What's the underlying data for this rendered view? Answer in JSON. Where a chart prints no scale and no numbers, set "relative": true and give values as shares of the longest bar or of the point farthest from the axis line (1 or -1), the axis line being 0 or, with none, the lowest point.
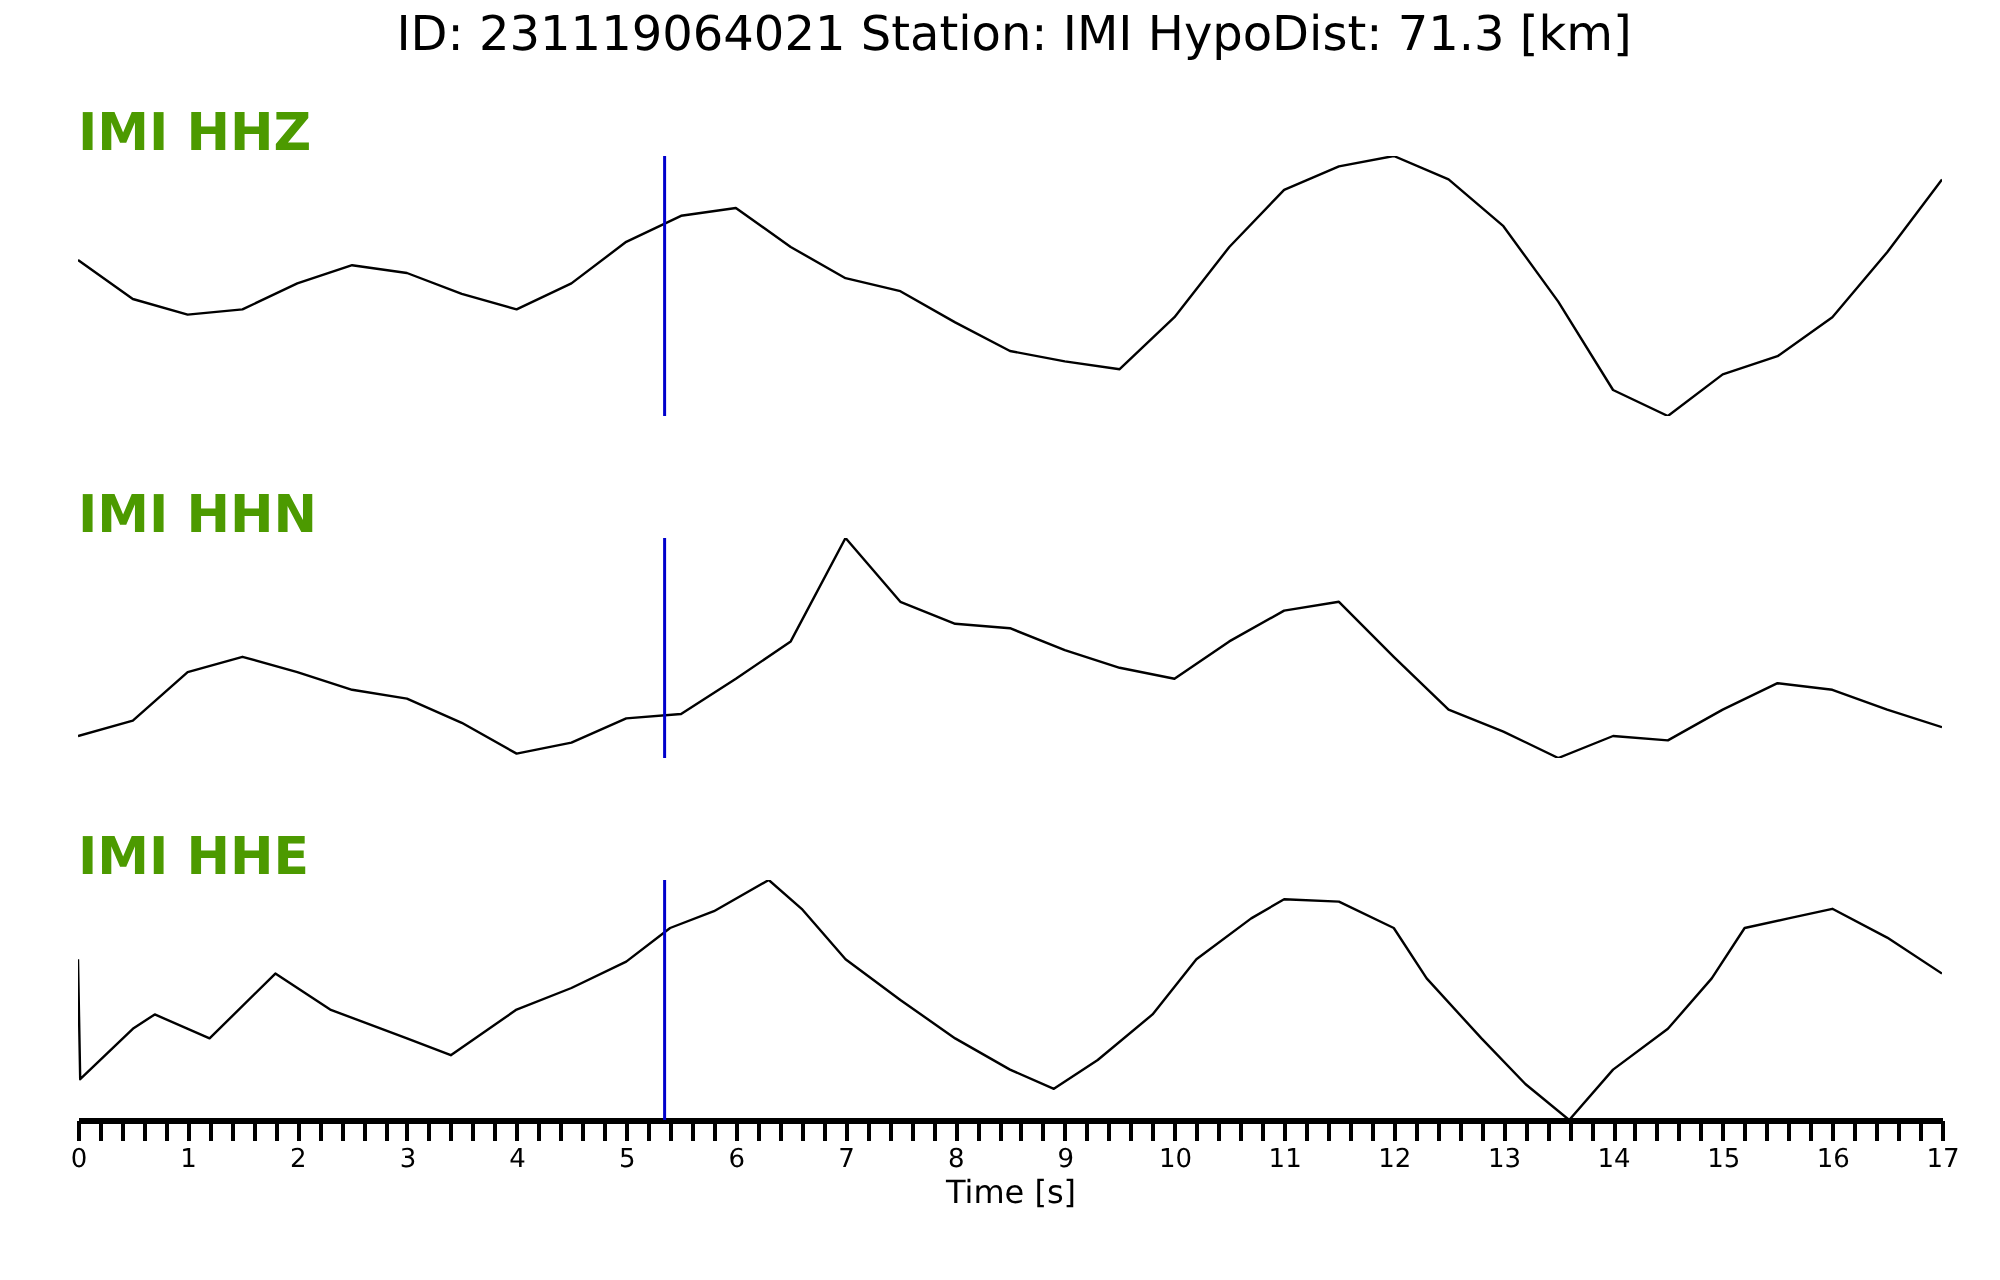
{
  "chart_data": [
    {
      "type": "line",
      "title": "ID: 231119064021   Station: IMI   HypoDist:    71.3 [km]",
      "relative": true,
      "tick_labels": false,
      "legend": false,
      "categories": [
        null,
        null,
        null,
        null,
        null,
        null,
        null,
        null,
        null,
        null,
        null,
        null,
        null,
        null,
        null,
        null,
        null,
        null,
        null,
        null,
        null,
        null,
        null,
        null,
        null,
        null,
        null,
        null,
        null,
        null,
        null,
        null,
        null,
        null,
        null
      ],
      "series": [
        {
          "name": "IMI HHZ",
          "color": "#000000",
          "values": [
            0.6,
            0.45,
            0.39,
            0.41,
            0.51,
            0.58,
            0.55,
            0.47,
            0.41,
            0.51,
            0.67,
            0.77,
            0.8,
            0.65,
            0.53,
            0.48,
            0.36,
            0.25,
            0.21,
            0.18,
            0.38,
            0.65,
            0.87,
            0.96,
            1,
            0.91,
            0.73,
            0.44,
            0.1,
            0,
            0.16,
            0.23,
            0.38,
            0.63,
            0.91
          ]
        }
      ]
    },
    {
      "type": "line",
      "relative": true,
      "tick_labels": false,
      "legend": false,
      "categories": [
        null,
        null,
        null,
        null,
        null,
        null,
        null,
        null,
        null,
        null,
        null,
        null,
        null,
        null,
        null,
        null,
        null,
        null,
        null,
        null,
        null,
        null,
        null,
        null,
        null,
        null,
        null,
        null,
        null,
        null,
        null,
        null,
        null,
        null,
        null
      ],
      "series": [
        {
          "name": "IMI HHN",
          "color": "#000000",
          "values": [
            0.1,
            0.17,
            0.39,
            0.46,
            0.39,
            0.31,
            0.27,
            0.16,
            0.02,
            0.07,
            0.18,
            0.2,
            0.36,
            0.53,
            1,
            0.71,
            0.61,
            0.59,
            0.49,
            0.41,
            0.36,
            0.53,
            0.67,
            0.71,
            0.46,
            0.22,
            0.12,
            0,
            0.1,
            0.08,
            0.22,
            0.34,
            0.31,
            0.22,
            0.14
          ]
        }
      ]
    },
    {
      "type": "line",
      "relative": true,
      "xlim": [
        0,
        17
      ],
      "xlabel": "Time [s]",
      "tick_labels": "x",
      "legend": false,
      "xticks": [
        0,
        {
          "value": 0.2,
          "label": null
        },
        {
          "value": 0.4,
          "label": null
        },
        {
          "value": 0.6,
          "label": null
        },
        {
          "value": 0.8,
          "label": null
        },
        1,
        {
          "value": 1.2,
          "label": null
        },
        {
          "value": 1.4,
          "label": null
        },
        {
          "value": 1.6,
          "label": null
        },
        {
          "value": 1.8,
          "label": null
        },
        2,
        {
          "value": 2.2,
          "label": null
        },
        {
          "value": 2.4,
          "label": null
        },
        {
          "value": 2.6,
          "label": null
        },
        {
          "value": 2.8,
          "label": null
        },
        3,
        {
          "value": 3.2,
          "label": null
        },
        {
          "value": 3.4,
          "label": null
        },
        {
          "value": 3.6,
          "label": null
        },
        {
          "value": 3.8,
          "label": null
        },
        4,
        {
          "value": 4.2,
          "label": null
        },
        {
          "value": 4.4,
          "label": null
        },
        {
          "value": 4.6,
          "label": null
        },
        {
          "value": 4.8,
          "label": null
        },
        5,
        {
          "value": 5.2,
          "label": null
        },
        {
          "value": 5.4,
          "label": null
        },
        {
          "value": 5.6,
          "label": null
        },
        {
          "value": 5.8,
          "label": null
        },
        6,
        {
          "value": 6.2,
          "label": null
        },
        {
          "value": 6.4,
          "label": null
        },
        {
          "value": 6.6,
          "label": null
        },
        {
          "value": 6.8,
          "label": null
        },
        7,
        {
          "value": 7.2,
          "label": null
        },
        {
          "value": 7.4,
          "label": null
        },
        {
          "value": 7.6,
          "label": null
        },
        {
          "value": 7.8,
          "label": null
        },
        8,
        {
          "value": 8.2,
          "label": null
        },
        {
          "value": 8.4,
          "label": null
        },
        {
          "value": 8.6,
          "label": null
        },
        {
          "value": 8.8,
          "label": null
        },
        9,
        {
          "value": 9.2,
          "label": null
        },
        {
          "value": 9.4,
          "label": null
        },
        {
          "value": 9.6,
          "label": null
        },
        {
          "value": 9.8,
          "label": null
        },
        10,
        {
          "value": 10.2,
          "label": null
        },
        {
          "value": 10.4,
          "label": null
        },
        {
          "value": 10.6,
          "label": null
        },
        {
          "value": 10.8,
          "label": null
        },
        11,
        {
          "value": 11.2,
          "label": null
        },
        {
          "value": 11.4,
          "label": null
        },
        {
          "value": 11.6,
          "label": null
        },
        {
          "value": 11.8,
          "label": null
        },
        12,
        {
          "value": 12.2,
          "label": null
        },
        {
          "value": 12.4,
          "label": null
        },
        {
          "value": 12.6,
          "label": null
        },
        {
          "value": 12.8,
          "label": null
        },
        13,
        {
          "value": 13.2,
          "label": null
        },
        {
          "value": 13.4,
          "label": null
        },
        {
          "value": 13.6,
          "label": null
        },
        {
          "value": 13.8,
          "label": null
        },
        14,
        {
          "value": 14.2,
          "label": null
        },
        {
          "value": 14.4,
          "label": null
        },
        {
          "value": 14.6,
          "label": null
        },
        {
          "value": 14.8,
          "label": null
        },
        15,
        {
          "value": 15.2,
          "label": null
        },
        {
          "value": 15.4,
          "label": null
        },
        {
          "value": 15.6,
          "label": null
        },
        {
          "value": 15.8,
          "label": null
        },
        16,
        {
          "value": 16.2,
          "label": null
        },
        {
          "value": 16.4,
          "label": null
        },
        {
          "value": 16.6,
          "label": null
        },
        {
          "value": 16.8,
          "label": null
        },
        17
      ],
      "x": [
        0,
        0.02,
        0.5,
        0.7,
        1.2,
        1.8,
        2.3,
        3,
        3.4,
        4,
        4.5,
        5,
        5.4,
        5.8,
        6.3,
        6.6,
        7,
        7.5,
        8,
        8.5,
        8.9,
        9.3,
        9.8,
        10.2,
        10.7,
        11,
        11.5,
        12,
        12.3,
        12.8,
        13.2,
        13.6,
        14,
        14.5,
        14.9,
        15.2,
        15.6,
        16,
        16.5,
        17
      ],
      "series": [
        {
          "name": "IMI HHE",
          "color": "#000000",
          "values": [
            0.67,
            0.17,
            0.38,
            0.44,
            0.34,
            0.61,
            0.46,
            0.34,
            0.27,
            0.46,
            0.55,
            0.66,
            0.8,
            0.87,
            1,
            0.88,
            0.67,
            0.5,
            0.34,
            0.21,
            0.13,
            0.25,
            0.44,
            0.67,
            0.84,
            0.92,
            0.91,
            0.8,
            0.59,
            0.34,
            0.15,
            0,
            0.21,
            0.38,
            0.59,
            0.8,
            0.84,
            0.88,
            0.76,
            0.61
          ]
        }
      ],
      "ref_lines": [
        {
          "axis": "x",
          "value": 5.35,
          "color": "#0000cc"
        }
      ]
    }
  ]
}
